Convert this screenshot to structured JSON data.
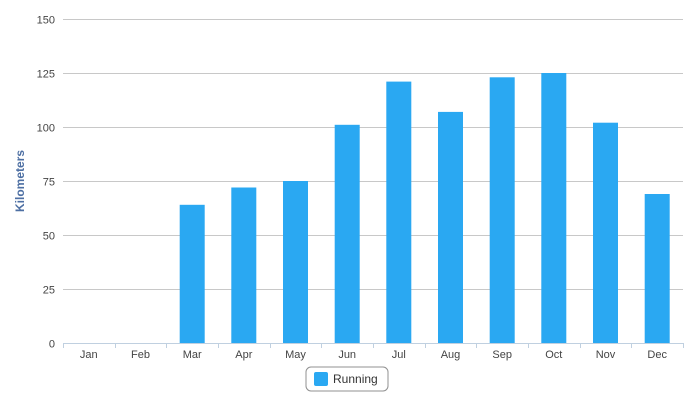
{
  "chart_data": {
    "type": "bar",
    "title": "",
    "xlabel": "",
    "ylabel": "Kilometers",
    "categories": [
      "Jan",
      "Feb",
      "Mar",
      "Apr",
      "May",
      "Jun",
      "Jul",
      "Aug",
      "Sep",
      "Oct",
      "Nov",
      "Dec"
    ],
    "series": [
      {
        "name": "Running",
        "color": "#2aa8f2",
        "values": [
          0,
          0,
          64,
          72,
          75,
          101,
          121,
          107,
          123,
          125,
          102,
          69
        ]
      }
    ],
    "ylim": [
      0,
      150
    ],
    "yticks": [
      0,
      25,
      50,
      75,
      100,
      125,
      150
    ],
    "grid": true,
    "legend": "bottom-center"
  }
}
